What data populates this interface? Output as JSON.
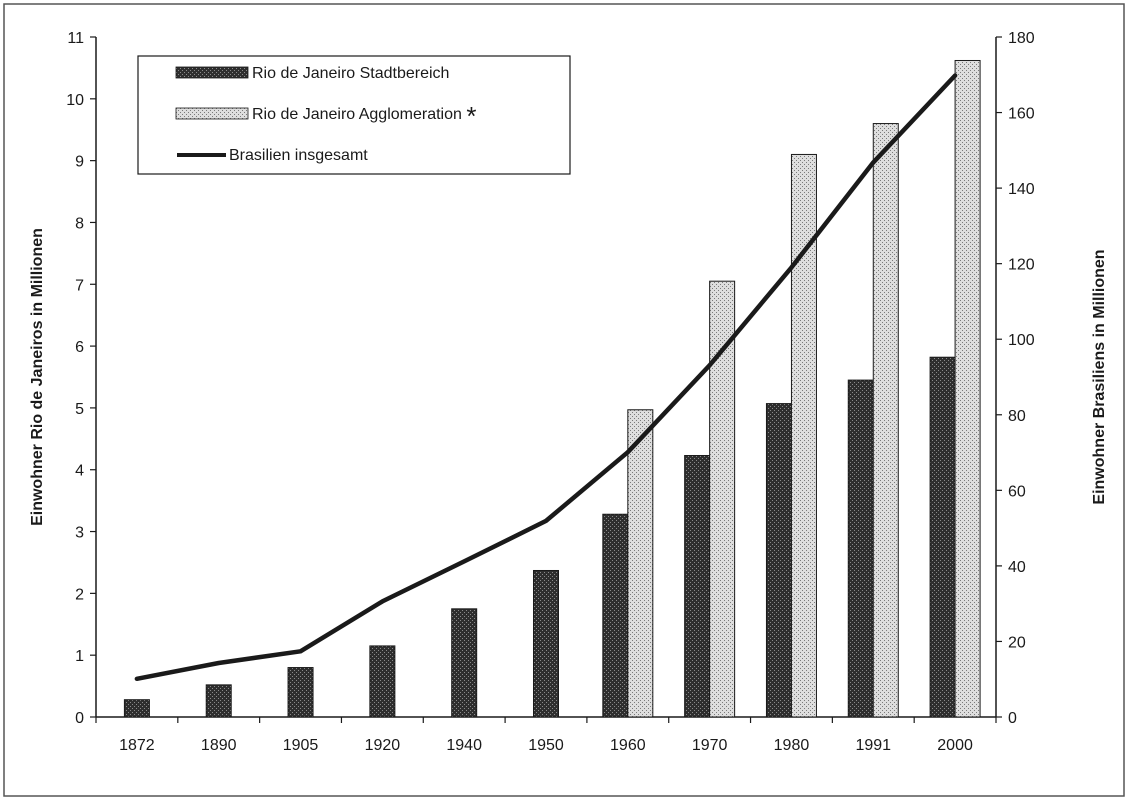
{
  "chart_data": {
    "type": "bar",
    "categories": [
      "1872",
      "1890",
      "1905",
      "1920",
      "1940",
      "1950",
      "1960",
      "1970",
      "1980",
      "1991",
      "2000"
    ],
    "series": [
      {
        "name": "Rio de Janeiro Stadtbereich",
        "kind": "bar",
        "axis": "left",
        "values": [
          0.28,
          0.52,
          0.8,
          1.15,
          1.75,
          2.37,
          3.28,
          4.23,
          5.07,
          5.45,
          5.82
        ]
      },
      {
        "name": "Rio de Janeiro Agglomeration",
        "kind": "bar",
        "axis": "left",
        "values": [
          null,
          null,
          null,
          null,
          null,
          null,
          4.97,
          7.05,
          9.1,
          9.6,
          10.62
        ]
      },
      {
        "name": "Brasilien insgesamt",
        "kind": "line",
        "axis": "right",
        "values": [
          10.1,
          14.3,
          17.4,
          30.6,
          41.2,
          51.9,
          70.1,
          93.1,
          119.0,
          146.8,
          169.8
        ]
      }
    ],
    "legend_marker": "*",
    "ylabel": "Einwohner Rio de Janeiros in Millionen",
    "y2label": "Einwohner Brasiliens in Millionen",
    "ylim": [
      0,
      11
    ],
    "y2lim": [
      0,
      180
    ],
    "yticks": [
      "0",
      "1",
      "2",
      "3",
      "4",
      "5",
      "6",
      "7",
      "8",
      "9",
      "10",
      "11"
    ],
    "y2ticks": [
      "0",
      "20",
      "40",
      "60",
      "80",
      "100",
      "120",
      "140",
      "160",
      "180"
    ],
    "legend_position": "top-left",
    "grid": false,
    "colors": {
      "stadtbereich": "#3a3a3a",
      "agglomeration": "#d4d4d4",
      "line": "#1a1a1a"
    }
  }
}
